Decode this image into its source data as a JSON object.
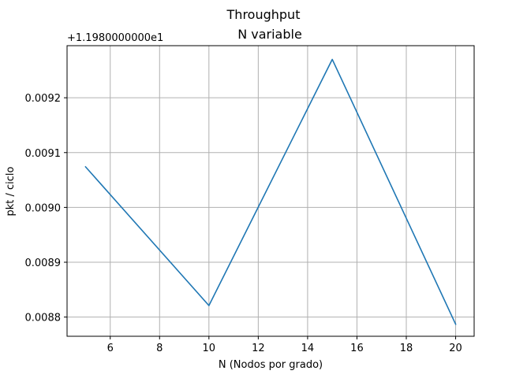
{
  "chart_data": {
    "type": "line",
    "title": "Throughput",
    "subtitle": "N variable",
    "xlabel": "N (Nodos por grado)",
    "ylabel": "pkt / ciclo",
    "y_offset_text": "+1.1980000000e1",
    "x_ticks": [
      6,
      8,
      10,
      12,
      14,
      16,
      18,
      20
    ],
    "x_tick_labels": [
      "6",
      "8",
      "10",
      "12",
      "14",
      "16",
      "18",
      "20"
    ],
    "y_ticks": [
      0.0088,
      0.0089,
      0.009,
      0.0091,
      0.0092
    ],
    "y_tick_labels": [
      "0.0088",
      "0.0089",
      "0.0090",
      "0.0091",
      "0.0092"
    ],
    "xlim": [
      4.25,
      20.75
    ],
    "ylim": [
      0.008765,
      0.009295
    ],
    "grid": true,
    "legend": "none",
    "color": "#1f77b4",
    "series": [
      {
        "x": [
          5,
          10,
          15,
          20
        ],
        "values": [
          0.009074,
          0.008821,
          0.00927,
          0.008787
        ]
      }
    ]
  }
}
